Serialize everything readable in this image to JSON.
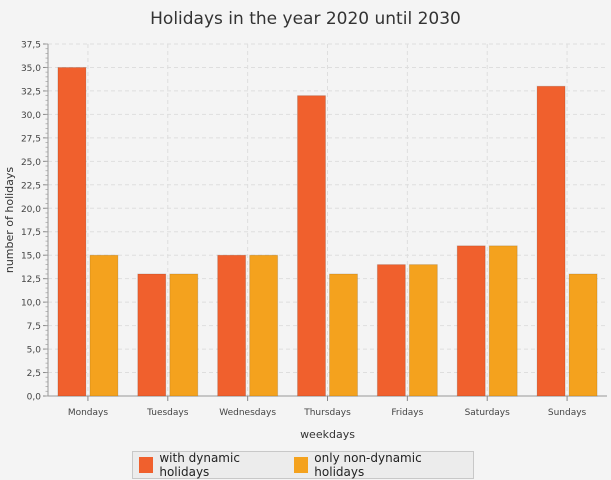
{
  "chart_data": {
    "type": "bar",
    "title": "Holidays in the year 2020 until 2030",
    "xlabel": "weekdays",
    "ylabel": "number of holidays",
    "categories": [
      "Mondays",
      "Tuesdays",
      "Wednesdays",
      "Thursdays",
      "Fridays",
      "Saturdays",
      "Sundays"
    ],
    "series": [
      {
        "name": "with dynamic holidays",
        "color": "#f0602d",
        "values": [
          35,
          13,
          15,
          32,
          14,
          16,
          33
        ]
      },
      {
        "name": "only non-dynamic holidays",
        "color": "#f4a21e",
        "values": [
          15,
          13,
          15,
          13,
          14,
          16,
          13
        ]
      }
    ],
    "ylim": [
      0,
      37.5
    ],
    "yticks": [
      "0,0",
      "2,5",
      "5,0",
      "7,5",
      "10,0",
      "12,5",
      "15,0",
      "17,5",
      "20,0",
      "22,5",
      "25,0",
      "27,5",
      "30,0",
      "32,5",
      "35,0",
      "37,5"
    ],
    "grid": true,
    "legend_position": "bottom"
  }
}
